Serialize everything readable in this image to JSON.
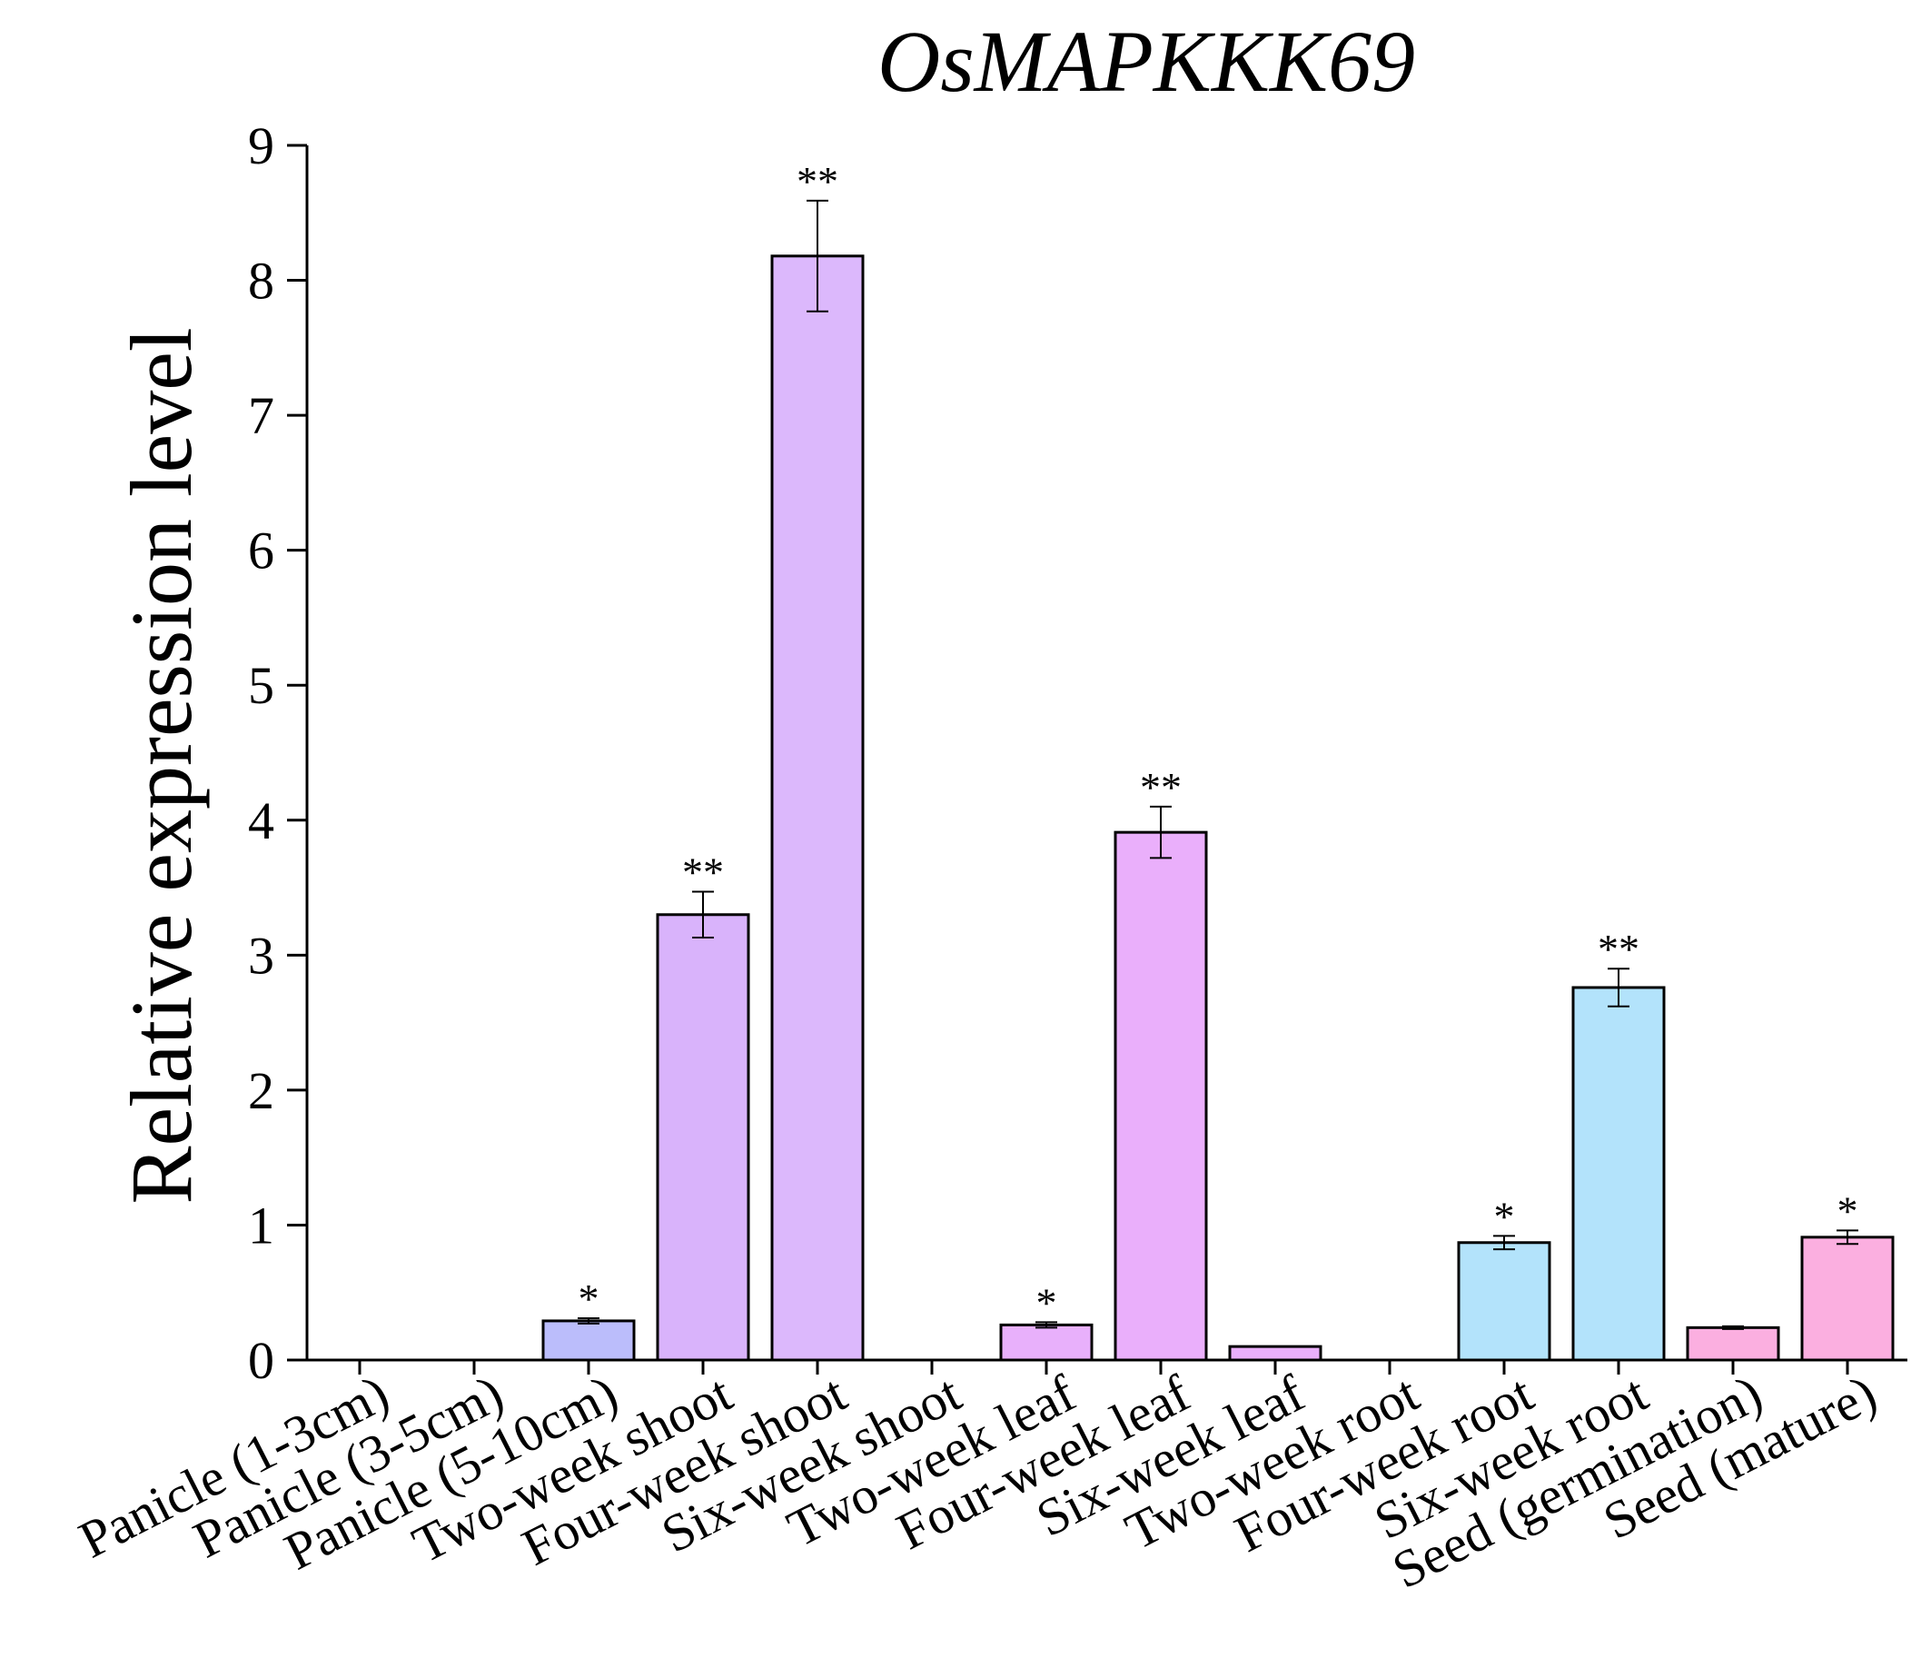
{
  "chart_data": {
    "type": "bar",
    "title": "OsMAPKKK69",
    "xlabel": "",
    "ylabel": "Relative expression level",
    "ylim": [
      0,
      9
    ],
    "yticks": [
      "0",
      "1",
      "2",
      "3",
      "4",
      "5",
      "6",
      "7",
      "8",
      "9"
    ],
    "grid": false,
    "categories": [
      "Panicle (1-3cm)",
      "Panicle (3-5cm)",
      "Panicle (5-10cm)",
      "Two-week shoot",
      "Four-week shoot",
      "Six-week shoot",
      "Two-week leaf",
      "Four-week leaf",
      "Six-week leaf",
      "Two-week root",
      "Four-week root",
      "Six-week root",
      "Seed (germination)",
      "Seed (mature)"
    ],
    "values": [
      0,
      0,
      0.29,
      3.3,
      8.18,
      0,
      0.26,
      3.91,
      0.1,
      0,
      0.87,
      2.76,
      0.24,
      0.91
    ],
    "errors": [
      0,
      0,
      0.02,
      0.17,
      0.41,
      0,
      0.02,
      0.19,
      0,
      0,
      0.05,
      0.14,
      0.01,
      0.05
    ],
    "significance": [
      "",
      "",
      "*",
      "**",
      "**",
      "",
      "*",
      "**",
      "",
      "",
      "*",
      "**",
      "",
      "*"
    ],
    "colors": [
      "#c7c7f8",
      "#c7c7f8",
      "#bbbdfb",
      "#d9b3fb",
      "#dcb8fc",
      "#dcb8fc",
      "#e8b0fb",
      "#eaaffb",
      "#eaaffb",
      "#b3e3fb",
      "#b3e3fb",
      "#b3e3fb",
      "#fbafe0",
      "#fbafe0"
    ]
  }
}
